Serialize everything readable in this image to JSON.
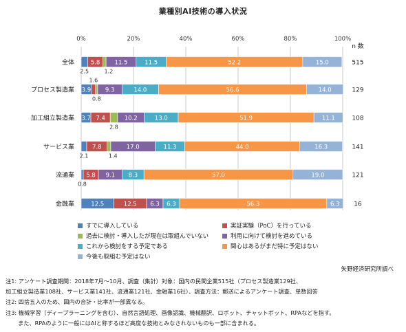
{
  "colors": {
    "c1": "#4f81bd",
    "c2": "#c0504d",
    "c3": "#9bbb59",
    "c4": "#8064a2",
    "c5": "#4bacc6",
    "c6": "#f79646",
    "c7": "#95b3d7",
    "grid": "#c8c8c8",
    "label_text": "#ffffff"
  },
  "chart_data": {
    "type": "bar",
    "orientation": "horizontal",
    "stacked": true,
    "title": "業種別AI技術の導入状況",
    "n_header": "n 数",
    "xlim": [
      0,
      100
    ],
    "xticks": [
      "0%",
      "20%",
      "40%",
      "60%",
      "80%",
      "100%"
    ],
    "grid": true,
    "legend_position": "bottom",
    "categories": [
      "全体",
      "プロセス製造業",
      "加工組立製造業",
      "サービス業",
      "流通業",
      "金融業"
    ],
    "n": [
      "515",
      "129",
      "108",
      "141",
      "121",
      "16"
    ],
    "series": [
      {
        "name": "すでに導入している",
        "color": "c1",
        "values": [
          2.5,
          3.9,
          3.7,
          2.1,
          0.8,
          12.5
        ]
      },
      {
        "name": "実証実験（PoC）を行っている",
        "color": "c2",
        "values": [
          5.8,
          1.6,
          7.4,
          7.8,
          5.8,
          12.5
        ]
      },
      {
        "name": "過去に検討・導入したが現在は取組んでいない",
        "color": "c3",
        "values": [
          1.2,
          0.8,
          2.8,
          1.4,
          0.0,
          0.0
        ]
      },
      {
        "name": "利用に向けて検討を進めている",
        "color": "c4",
        "values": [
          11.5,
          9.3,
          10.2,
          17.0,
          9.1,
          6.3
        ]
      },
      {
        "name": "これから検討をする予定である",
        "color": "c5",
        "values": [
          11.5,
          14.0,
          13.0,
          11.3,
          8.3,
          6.3
        ]
      },
      {
        "name": "関心はあるがまだ特に予定はない",
        "color": "c6",
        "values": [
          52.2,
          56.6,
          51.9,
          44.0,
          57.0,
          56.3
        ]
      },
      {
        "name": "今後も取組む予定はない",
        "color": "c7",
        "values": [
          15.0,
          14.0,
          11.1,
          16.3,
          19.0,
          6.3
        ]
      }
    ],
    "value_labels": [
      [
        "2.5",
        "5.8",
        "1.2",
        "11.5",
        "11.5",
        "52.2",
        "15.0"
      ],
      [
        "3.9",
        "1.6",
        "0.8",
        "9.3",
        "14.0",
        "56.6",
        "14.0"
      ],
      [
        "3.7",
        "7.4",
        "2.8",
        "10.2",
        "13.0",
        "51.9",
        "11.1"
      ],
      [
        "2.1",
        "7.8",
        "1.4",
        "17.0",
        "11.3",
        "44.0",
        "16.3"
      ],
      [
        "0.8",
        "5.8",
        "",
        "9.1",
        "8.3",
        "57.0",
        "19.0"
      ],
      [
        "12.5",
        "12.5",
        "",
        "6.3",
        "6.3",
        "56.3",
        "6.3"
      ]
    ]
  },
  "source": "矢野経済研究所調べ",
  "notes": [
    "注1: アンケート調査期間：2018年7月～10月、調査（集計）対象：国内の民間企業515社（プロセス製造業129社、",
    "加工組立製造業108社、サービス業141社、流通業121社、金融業16社）、調査方法：郵送によるアンケート調査、単数回答",
    "注2: 四捨五入のため、図内の合計・比率が一部異なる。",
    "注3: 機械学習（ディープラーニングを含む）、自然言語処理、画像認識、機械翻訳、ロボット、チャットボット、RPAなどを指す。",
    "また、RPAのように一般にはAIと称するほど高度な技術とみなされないものも一部に含まれる。"
  ]
}
